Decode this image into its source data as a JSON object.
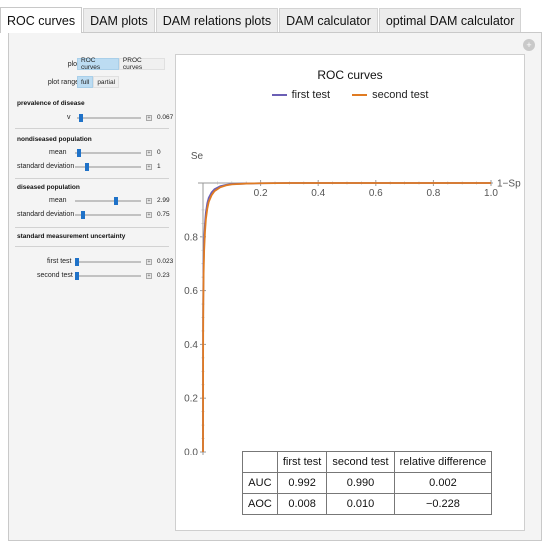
{
  "tabs": [
    {
      "label": "ROC curves",
      "active": true
    },
    {
      "label": "DAM plots",
      "active": false
    },
    {
      "label": "DAM relations plots",
      "active": false
    },
    {
      "label": "DAM calculator",
      "active": false
    },
    {
      "label": "optimal DAM calculator",
      "active": false
    }
  ],
  "controls": {
    "plot_label": "plot",
    "plot_options": [
      "ROC curves",
      "PROC curves"
    ],
    "plot_selected": "ROC curves",
    "range_label": "plot range",
    "range_options": [
      "full",
      "partial"
    ],
    "range_selected": "full",
    "prevalence": {
      "title": "prevalence of disease",
      "v_label": "v",
      "v_value": "0.067",
      "v_fraction": 0.07
    },
    "nondiseased": {
      "title": "nondiseased population",
      "mean_label": "mean",
      "mean_value": "0",
      "mean_fraction": 0.06,
      "sd_label": "standard deviation",
      "sd_value": "1",
      "sd_fraction": 0.18
    },
    "diseased": {
      "title": "diseased population",
      "mean_label": "mean",
      "mean_value": "2.99",
      "mean_fraction": 0.62,
      "sd_label": "standard deviation",
      "sd_value": "0.75",
      "sd_fraction": 0.12
    },
    "uncertainty": {
      "title": "standard measurement uncertainty",
      "first_label": "first test",
      "first_value": "0.023",
      "first_fraction": 0.03,
      "second_label": "second test",
      "second_value": "0.23",
      "second_fraction": 0.03
    }
  },
  "chart_data": {
    "type": "line",
    "title": "ROC curves",
    "xlabel": "1−Sp",
    "ylabel": "Se",
    "xlim": [
      0,
      1.0
    ],
    "ylim": [
      -0.05,
      1.0
    ],
    "xticks": [
      0.2,
      0.4,
      0.6,
      0.8,
      1.0
    ],
    "xtick_labels": [
      "0.2",
      "0.4",
      "0.6",
      "0.8",
      "1.0"
    ],
    "yticks": [
      0.0,
      0.2,
      0.4,
      0.6,
      0.8
    ],
    "ytick_labels": [
      "0.0",
      "0.2",
      "0.4",
      "0.6",
      "0.8"
    ],
    "legend": "top",
    "series": [
      {
        "name": "first test",
        "color": "#6b5fb5",
        "x": [
          0,
          0.0005,
          0.001,
          0.002,
          0.004,
          0.007,
          0.01,
          0.015,
          0.02,
          0.03,
          0.04,
          0.06,
          0.08,
          0.1,
          0.15,
          0.2,
          0.3,
          0.5,
          0.75,
          1.0
        ],
        "y": [
          0,
          0.5,
          0.6,
          0.7,
          0.79,
          0.85,
          0.89,
          0.925,
          0.945,
          0.965,
          0.977,
          0.988,
          0.993,
          0.996,
          0.998,
          0.999,
          1.0,
          1.0,
          1.0,
          1.0
        ]
      },
      {
        "name": "second test",
        "color": "#e07b22",
        "x": [
          0,
          0.0005,
          0.001,
          0.002,
          0.004,
          0.007,
          0.01,
          0.015,
          0.02,
          0.03,
          0.04,
          0.06,
          0.08,
          0.1,
          0.15,
          0.2,
          0.3,
          0.5,
          0.75,
          1.0
        ],
        "y": [
          0,
          0.45,
          0.55,
          0.66,
          0.75,
          0.82,
          0.865,
          0.905,
          0.93,
          0.955,
          0.97,
          0.984,
          0.991,
          0.995,
          0.998,
          0.999,
          1.0,
          1.0,
          1.0,
          1.0
        ]
      }
    ]
  },
  "results": {
    "headers": [
      "first test",
      "second test",
      "relative difference"
    ],
    "rows": [
      {
        "label": "AUC",
        "values": [
          "0.992",
          "0.990",
          "0.002"
        ]
      },
      {
        "label": "AOC",
        "values": [
          "0.008",
          "0.010",
          "−0.228"
        ]
      }
    ]
  }
}
